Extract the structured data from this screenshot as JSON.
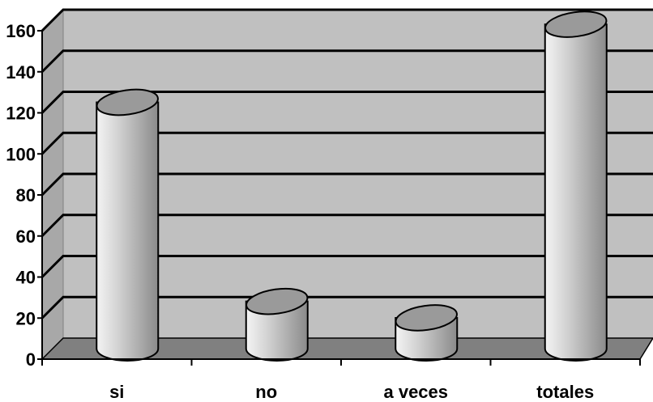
{
  "chart_data": {
    "type": "bar",
    "style": "3d-cylinder",
    "categories": [
      "si",
      "no",
      "a veces",
      "totales"
    ],
    "values": [
      120,
      23,
      15,
      158
    ],
    "yticks": [
      0,
      20,
      40,
      60,
      80,
      100,
      120,
      140,
      160
    ],
    "ylim": [
      0,
      160
    ],
    "grid": true,
    "legend": "none",
    "colors": {
      "wall": "#c0c0c0",
      "floor": "#808080",
      "bar": "#b4b4b4",
      "bar_top": "#9a9a9a",
      "grid": "#000000"
    }
  }
}
